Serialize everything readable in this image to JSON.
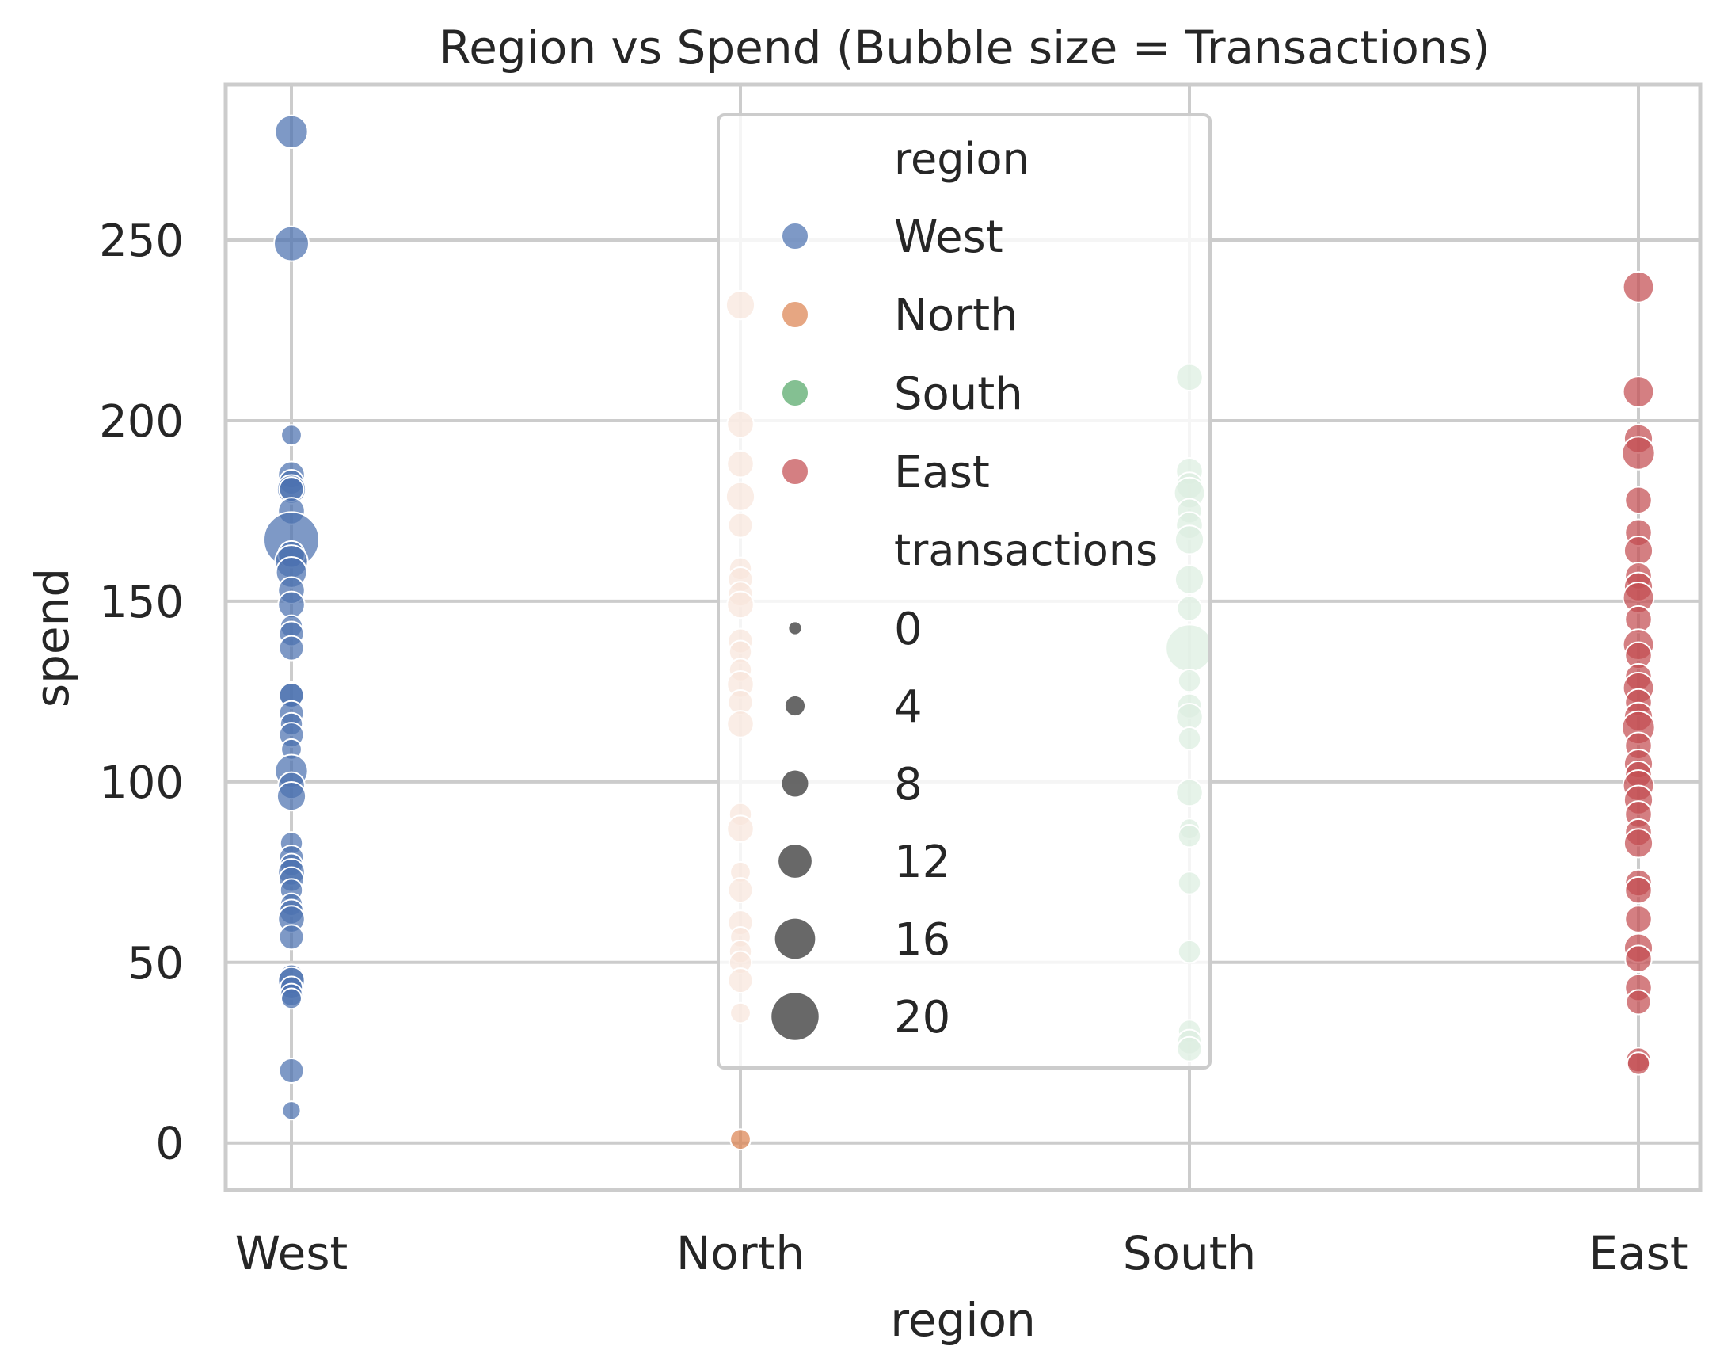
{
  "chart_data": {
    "type": "scatter",
    "title": "Region vs Spend (Bubble size = Transactions)",
    "xlabel": "region",
    "ylabel": "spend",
    "categories": [
      "West",
      "North",
      "South",
      "East"
    ],
    "ylim": [
      -13,
      293
    ],
    "yticks": [
      0,
      50,
      100,
      150,
      200,
      250
    ],
    "grid": true,
    "colors": {
      "West": "#4c72b0",
      "North": "#dd8452",
      "South": "#55a868",
      "East": "#c44e52"
    },
    "legend": {
      "placement": "upper-center",
      "region_title": "region",
      "region_entries": [
        "West",
        "North",
        "South",
        "East"
      ],
      "size_title": "transactions",
      "size_entries": [
        "0",
        "4",
        "8",
        "12",
        "16",
        "20"
      ],
      "size_values": [
        0,
        4,
        8,
        12,
        16,
        20
      ]
    },
    "series": [
      {
        "name": "West",
        "points": [
          [
            280,
            9
          ],
          [
            249,
            10
          ],
          [
            196,
            3
          ],
          [
            185,
            6
          ],
          [
            183,
            5
          ],
          [
            181,
            7
          ],
          [
            181,
            5
          ],
          [
            175,
            6
          ],
          [
            167,
            20
          ],
          [
            163,
            6
          ],
          [
            161,
            9
          ],
          [
            158,
            8
          ],
          [
            153,
            6
          ],
          [
            149,
            6
          ],
          [
            143,
            4
          ],
          [
            141,
            5
          ],
          [
            137,
            5
          ],
          [
            124,
            6
          ],
          [
            124,
            5
          ],
          [
            119,
            5
          ],
          [
            116,
            4
          ],
          [
            113,
            5
          ],
          [
            109,
            3
          ],
          [
            103,
            9
          ],
          [
            99,
            6
          ],
          [
            96,
            7
          ],
          [
            83,
            4
          ],
          [
            79,
            5
          ],
          [
            77,
            4
          ],
          [
            75,
            6
          ],
          [
            73,
            5
          ],
          [
            70,
            4
          ],
          [
            66,
            4
          ],
          [
            64,
            5
          ],
          [
            62,
            6
          ],
          [
            57,
            5
          ],
          [
            46,
            5
          ],
          [
            45,
            6
          ],
          [
            43,
            4
          ],
          [
            41,
            4
          ],
          [
            40,
            3
          ],
          [
            20,
            5
          ],
          [
            9,
            2
          ]
        ]
      },
      {
        "name": "North",
        "points": [
          [
            232,
            7
          ],
          [
            199,
            6
          ],
          [
            188,
            6
          ],
          [
            179,
            7
          ],
          [
            171,
            5
          ],
          [
            159,
            4
          ],
          [
            156,
            5
          ],
          [
            152,
            5
          ],
          [
            149,
            6
          ],
          [
            139,
            5
          ],
          [
            136,
            4
          ],
          [
            131,
            4
          ],
          [
            127,
            6
          ],
          [
            122,
            5
          ],
          [
            116,
            6
          ],
          [
            91,
            4
          ],
          [
            87,
            6
          ],
          [
            75,
            3
          ],
          [
            70,
            5
          ],
          [
            61,
            5
          ],
          [
            57,
            3
          ],
          [
            53,
            4
          ],
          [
            50,
            4
          ],
          [
            45,
            5
          ],
          [
            36,
            3
          ],
          [
            1,
            3
          ]
        ]
      },
      {
        "name": "South",
        "points": [
          [
            212,
            6
          ],
          [
            186,
            6
          ],
          [
            182,
            6
          ],
          [
            180,
            8
          ],
          [
            175,
            5
          ],
          [
            171,
            6
          ],
          [
            167,
            7
          ],
          [
            156,
            7
          ],
          [
            148,
            5
          ],
          [
            137,
            16
          ],
          [
            128,
            4
          ],
          [
            121,
            5
          ],
          [
            118,
            6
          ],
          [
            112,
            4
          ],
          [
            97,
            6
          ],
          [
            87,
            3
          ],
          [
            85,
            4
          ],
          [
            72,
            4
          ],
          [
            53,
            4
          ],
          [
            31,
            4
          ],
          [
            28,
            5
          ],
          [
            26,
            5
          ]
        ]
      },
      {
        "name": "East",
        "points": [
          [
            237,
            8
          ],
          [
            208,
            8
          ],
          [
            195,
            7
          ],
          [
            191,
            9
          ],
          [
            178,
            6
          ],
          [
            169,
            6
          ],
          [
            164,
            7
          ],
          [
            157,
            6
          ],
          [
            154,
            7
          ],
          [
            151,
            8
          ],
          [
            145,
            6
          ],
          [
            138,
            8
          ],
          [
            135,
            6
          ],
          [
            129,
            6
          ],
          [
            126,
            8
          ],
          [
            122,
            6
          ],
          [
            118,
            7
          ],
          [
            115,
            9
          ],
          [
            110,
            6
          ],
          [
            105,
            7
          ],
          [
            102,
            6
          ],
          [
            99,
            8
          ],
          [
            95,
            7
          ],
          [
            91,
            6
          ],
          [
            86,
            6
          ],
          [
            83,
            7
          ],
          [
            72,
            6
          ],
          [
            70,
            6
          ],
          [
            62,
            6
          ],
          [
            54,
            7
          ],
          [
            51,
            6
          ],
          [
            43,
            6
          ],
          [
            39,
            5
          ],
          [
            23,
            5
          ],
          [
            22,
            4
          ]
        ]
      }
    ]
  }
}
